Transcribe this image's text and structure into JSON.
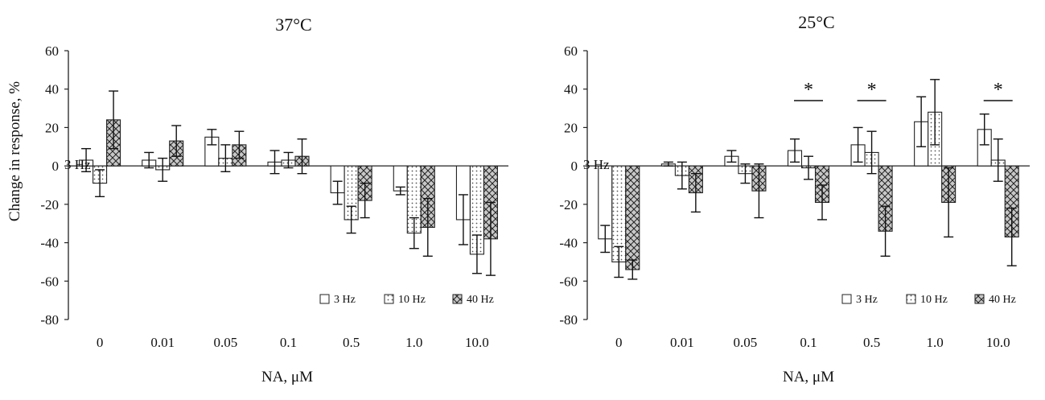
{
  "ylabel": "Change in response, %",
  "chart_data": [
    {
      "type": "bar",
      "title": "37°C",
      "xlabel": "NA, μM",
      "ylabel": "Change in response, %",
      "ylim": [
        -80,
        60
      ],
      "yticks": [
        "60",
        "40",
        "20",
        "0",
        "-20",
        "-40",
        "-60",
        "-80"
      ],
      "categories": [
        "0",
        "0.01",
        "0.05",
        "0.1",
        "0.5",
        "1.0",
        "10.0"
      ],
      "legend": "bottom-right",
      "zero_label": "3 Hz",
      "series": [
        {
          "name": "3 Hz",
          "values": [
            3,
            3,
            15,
            2,
            -14,
            -13,
            -28
          ],
          "errors": [
            6,
            4,
            4,
            6,
            6,
            2,
            13
          ]
        },
        {
          "name": "10 Hz",
          "values": [
            -9,
            -2,
            4,
            3,
            -28,
            -35,
            -46
          ],
          "errors": [
            7,
            6,
            7,
            4,
            7,
            8,
            10
          ]
        },
        {
          "name": "40 Hz",
          "values": [
            24,
            13,
            11,
            5,
            -18,
            -32,
            -38
          ],
          "errors": [
            15,
            8,
            7,
            9,
            9,
            15,
            19
          ]
        }
      ],
      "significance": []
    },
    {
      "type": "bar",
      "title": "25°C",
      "xlabel": "NA, μM",
      "ylim": [
        -80,
        60
      ],
      "yticks": [
        "60",
        "40",
        "20",
        "0",
        "-20",
        "-40",
        "-60",
        "-80"
      ],
      "categories": [
        "0",
        "0.01",
        "0.05",
        "0.1",
        "0.5",
        "1.0",
        "10.0"
      ],
      "legend": "bottom-right",
      "zero_label": "3 Hz",
      "series": [
        {
          "name": "3 Hz",
          "values": [
            -38,
            1,
            5,
            8,
            11,
            23,
            19
          ],
          "errors": [
            7,
            1,
            3,
            6,
            9,
            13,
            8
          ]
        },
        {
          "name": "10 Hz",
          "values": [
            -50,
            -5,
            -4,
            -1,
            7,
            28,
            3
          ],
          "errors": [
            8,
            7,
            5,
            6,
            11,
            17,
            11
          ]
        },
        {
          "name": "40 Hz",
          "values": [
            -54,
            -14,
            -13,
            -19,
            -34,
            -19,
            -37
          ],
          "errors": [
            5,
            10,
            14,
            9,
            13,
            18,
            15
          ]
        }
      ],
      "significance": [
        {
          "category": "0.1",
          "label": "*"
        },
        {
          "category": "0.5",
          "label": "*"
        },
        {
          "category": "10.0",
          "label": "*"
        }
      ]
    }
  ]
}
